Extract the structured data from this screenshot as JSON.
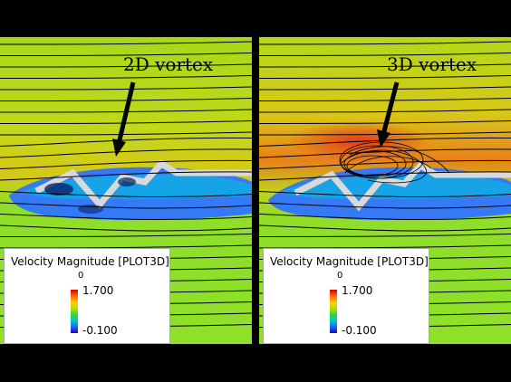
{
  "panels": [
    {
      "label": "2D vortex",
      "legend": {
        "title": "Velocity Magnitude [PLOT3D]",
        "zero": "0",
        "max": "1.700",
        "min": "-0.100"
      }
    },
    {
      "label": "3D vortex",
      "legend": {
        "title": "Velocity Magnitude [PLOT3D]",
        "zero": "0",
        "max": "1.700",
        "min": "-0.100"
      }
    }
  ],
  "colors": {
    "background_field": "#9fdc10",
    "high_velocity": "#e8401a",
    "low_velocity": "#1e5cff",
    "wall": "#d8d8d8",
    "streamline": "#000000"
  }
}
